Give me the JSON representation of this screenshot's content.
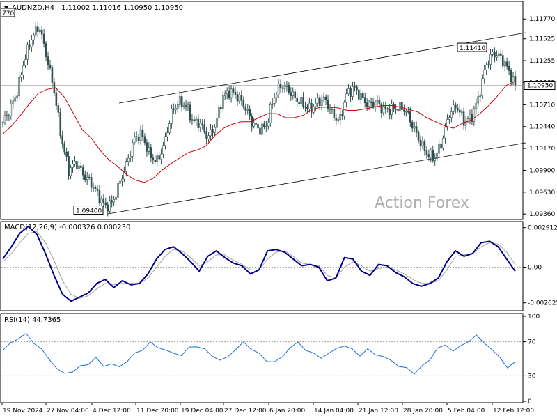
{
  "symbol_header": {
    "symbol": "AUDNZD,H4",
    "ohlc": "1.11002 1.11016 1.10950 1.10950"
  },
  "watermark": "Action Forex",
  "colors": {
    "candle": "#2f4f4f",
    "ma_line": "#cc0000",
    "channel": "#000000",
    "macd_line": "#00008b",
    "macd_signal": "#a0a0a0",
    "rsi_line": "#1e6fd9",
    "price_badge_bg": "#ffffff"
  },
  "chart_data": [
    {
      "type": "candlestick",
      "title": "AUDNZD,H4",
      "price_ticks": [
        "1.11770",
        "1.11525",
        "1.11255",
        "1.10985",
        "1.10710",
        "1.10440",
        "1.10170",
        "1.09900",
        "1.09630",
        "1.09360"
      ],
      "price_tick_values": [
        1.1177,
        1.11525,
        1.11255,
        1.10985,
        1.1071,
        1.1044,
        1.1017,
        1.099,
        1.0963,
        1.0936
      ],
      "ylim": [
        1.0931,
        1.1197
      ],
      "current_price": "1.10950",
      "current_price_value": 1.1095,
      "annotations": {
        "high_label": "1.11410",
        "high_value": 1.1141,
        "low_label": "1.09400",
        "low_value": 1.094,
        "left_label": "770"
      },
      "x_labels": [
        "19 Nov 2024",
        "27 Nov 04:00",
        "4 Dec 12:00",
        "11 Dec 20:00",
        "19 Dec 04:00",
        "27 Dec 12:00",
        "6 Jan 20:00",
        "14 Jan 04:00",
        "21 Jan 12:00",
        "28 Jan 20:00",
        "5 Feb 04:00",
        "12 Feb 12:00"
      ],
      "close_series": [
        1.1049,
        1.1065,
        1.1088,
        1.1128,
        1.1155,
        1.1168,
        1.113,
        1.109,
        1.103,
        1.099,
        1.1,
        1.0985,
        1.0975,
        1.096,
        1.0945,
        1.095,
        1.0975,
        1.1,
        1.103,
        1.1035,
        1.101,
        1.1,
        1.102,
        1.106,
        1.1075,
        1.107,
        1.105,
        1.1048,
        1.103,
        1.1045,
        1.108,
        1.1088,
        1.1082,
        1.107,
        1.105,
        1.104,
        1.1045,
        1.108,
        1.1095,
        1.109,
        1.1078,
        1.1072,
        1.1065,
        1.1075,
        1.1078,
        1.106,
        1.105,
        1.1085,
        1.1092,
        1.108,
        1.107,
        1.1075,
        1.1065,
        1.1065,
        1.1068,
        1.1065,
        1.1045,
        1.1025,
        1.101,
        1.1005,
        1.1025,
        1.106,
        1.107,
        1.105,
        1.1055,
        1.108,
        1.112,
        1.1135,
        1.113,
        1.1115,
        1.1095
      ],
      "ma_series": [
        1.1035,
        1.1045,
        1.1058,
        1.1072,
        1.1085,
        1.109,
        1.1092,
        1.108,
        1.106,
        1.104,
        1.103,
        1.1015,
        1.1003,
        1.0995,
        1.0985,
        1.0978,
        1.0975,
        1.098,
        1.099,
        1.0998,
        1.1005,
        1.1012,
        1.1015,
        1.102,
        1.1033,
        1.1042,
        1.1047,
        1.105,
        1.105,
        1.1055,
        1.106,
        1.106,
        1.1055,
        1.1055,
        1.1058,
        1.1065,
        1.1068,
        1.1068,
        1.1067,
        1.1064,
        1.1064,
        1.1066,
        1.1068,
        1.107,
        1.107,
        1.1068,
        1.1065,
        1.1062,
        1.1055,
        1.105,
        1.1045,
        1.1042,
        1.1048,
        1.1052,
        1.106,
        1.107,
        1.1082,
        1.1095,
        1.11
      ]
    },
    {
      "type": "line",
      "title": "MACD(12,26,9) -0.000326 0.000230",
      "ticks": [
        "0.002912",
        "0.00",
        "-0.002625"
      ],
      "tick_values": [
        0.002912,
        0.0,
        -0.002625
      ],
      "ylim": [
        -0.0031,
        0.00315
      ],
      "series": [
        {
          "name": "MACD",
          "values": [
            0.0006,
            0.0015,
            0.0025,
            0.003,
            0.0024,
            0.001,
            -0.0006,
            -0.002,
            -0.0025,
            -0.0022,
            -0.0019,
            -0.0012,
            -0.0009,
            -0.0015,
            -0.001,
            -0.0013,
            -0.0012,
            -0.0005,
            0.0006,
            0.0013,
            0.0015,
            0.001,
            0.0004,
            -0.0003,
            0.0008,
            0.0012,
            0.0007,
            0.0003,
            0.0001,
            -0.0005,
            -0.0002,
            0.0012,
            0.0013,
            0.0011,
            0.0006,
            0.0001,
            0.0002,
            0.0,
            -0.001,
            -0.0008,
            0.0007,
            0.0006,
            -0.0003,
            -0.0006,
            0.0002,
            0.0001,
            -0.0004,
            -0.0007,
            -0.0012,
            -0.0014,
            -0.0012,
            -0.0008,
            0.0004,
            0.0012,
            0.0008,
            0.001,
            0.0018,
            0.0019,
            0.0015,
            0.0006,
            -0.0003
          ]
        },
        {
          "name": "Signal",
          "values": [
            0.0004,
            0.001,
            0.0018,
            0.0025,
            0.0026,
            0.0018,
            0.0005,
            -0.001,
            -0.002,
            -0.0023,
            -0.0021,
            -0.0016,
            -0.0012,
            -0.0013,
            -0.0012,
            -0.0012,
            -0.0012,
            -0.0008,
            0.0,
            0.0008,
            0.0013,
            0.0012,
            0.0007,
            0.0001,
            0.0004,
            0.0009,
            0.0009,
            0.0005,
            0.0002,
            -0.0002,
            -0.0002,
            0.0006,
            0.0011,
            0.0012,
            0.0008,
            0.0003,
            0.0002,
            0.0001,
            -0.0006,
            -0.0008,
            0.0,
            0.0004,
            0.0001,
            -0.0003,
            -0.0001,
            0.0,
            -0.0002,
            -0.0005,
            -0.0009,
            -0.0012,
            -0.0012,
            -0.001,
            -0.0002,
            0.0008,
            0.0009,
            0.001,
            0.0015,
            0.0018,
            0.0017,
            0.0011,
            0.0002
          ]
        }
      ]
    },
    {
      "type": "line",
      "title": "RSI(14) 44.7365",
      "ticks": [
        "100",
        "70",
        "30",
        "0"
      ],
      "tick_values": [
        100,
        70,
        30,
        0
      ],
      "ylim": [
        0,
        100
      ],
      "levels": [
        70,
        30
      ],
      "series": [
        {
          "name": "RSI",
          "values": [
            60,
            68,
            75,
            78,
            70,
            60,
            50,
            38,
            32,
            36,
            40,
            45,
            50,
            42,
            44,
            40,
            48,
            55,
            62,
            68,
            64,
            60,
            56,
            55,
            62,
            66,
            60,
            54,
            48,
            52,
            62,
            68,
            63,
            55,
            48,
            46,
            52,
            64,
            68,
            62,
            55,
            52,
            56,
            62,
            66,
            60,
            55,
            60,
            56,
            52,
            48,
            42,
            38,
            34,
            40,
            50,
            62,
            66,
            60,
            64,
            72,
            76,
            70,
            60,
            52,
            40,
            45
          ]
        }
      ]
    }
  ]
}
